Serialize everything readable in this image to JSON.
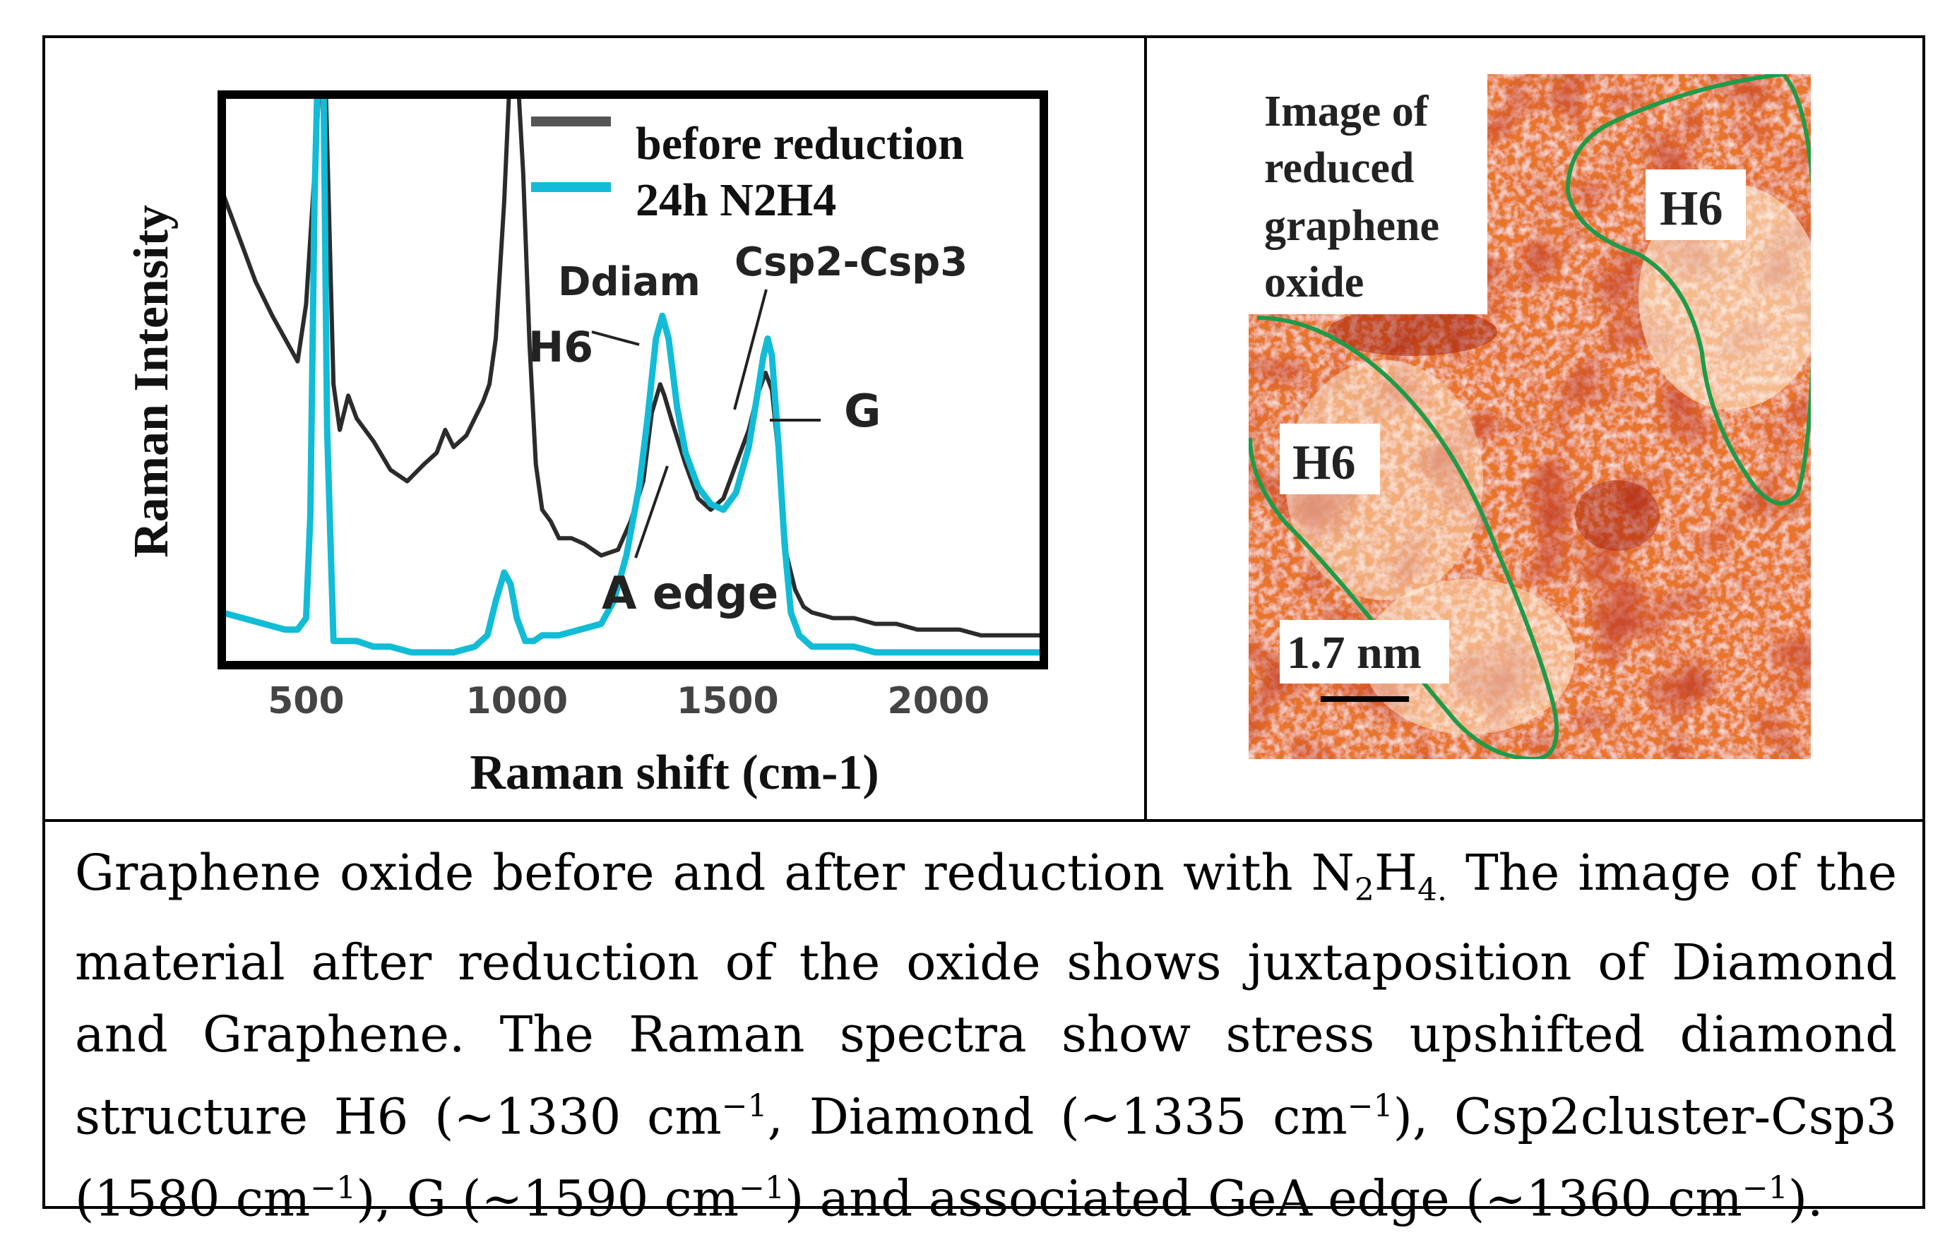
{
  "chart_data": {
    "type": "line",
    "xlabel": "Raman shift (cm-1)",
    "ylabel": "Raman Intensity",
    "xlim": [
      300,
      2250
    ],
    "x_ticks": [
      "500",
      "1000",
      "1500",
      "2000"
    ],
    "x_tick_values": [
      500,
      1000,
      1500,
      2000
    ],
    "ylim": [
      0,
      100
    ],
    "legend": {
      "position": "top-right"
    },
    "series": [
      {
        "name": "before reduction",
        "color": "#2b2b2b",
        "x": [
          300,
          340,
          380,
          420,
          450,
          480,
          500,
          520,
          535,
          545,
          565,
          580,
          600,
          620,
          660,
          700,
          740,
          780,
          810,
          830,
          850,
          880,
          900,
          920,
          935,
          950,
          970,
          985,
          1000,
          1015,
          1030,
          1045,
          1060,
          1080,
          1100,
          1130,
          1160,
          1200,
          1240,
          1270,
          1300,
          1320,
          1340,
          1350,
          1370,
          1400,
          1430,
          1460,
          1490,
          1520,
          1550,
          1570,
          1590,
          1605,
          1620,
          1640,
          1660,
          1680,
          1700,
          1750,
          1800,
          1850,
          1900,
          1950,
          2000,
          2050,
          2100,
          2150,
          2200,
          2250
        ],
        "y": [
          82,
          74,
          66,
          60,
          56,
          52,
          62,
          85,
          105,
          105,
          48,
          40,
          46,
          42,
          38,
          33,
          31,
          34,
          36,
          40,
          37,
          39,
          42,
          45,
          48,
          56,
          80,
          105,
          105,
          85,
          55,
          34,
          26,
          24,
          21,
          21,
          20,
          18,
          19,
          24,
          31,
          43,
          48,
          46,
          41,
          34,
          28,
          26,
          28,
          34,
          40,
          46,
          50,
          47,
          36,
          18,
          12,
          9,
          8,
          7,
          7,
          6,
          6,
          5,
          5,
          5,
          4,
          4,
          4,
          4
        ]
      },
      {
        "name": "24h N2H4",
        "color": "#12bcd6",
        "x": [
          300,
          350,
          400,
          450,
          480,
          500,
          510,
          520,
          530,
          540,
          550,
          565,
          580,
          620,
          660,
          700,
          750,
          800,
          850,
          900,
          930,
          950,
          970,
          985,
          1000,
          1020,
          1040,
          1060,
          1100,
          1150,
          1200,
          1230,
          1260,
          1290,
          1310,
          1330,
          1345,
          1360,
          1380,
          1400,
          1430,
          1460,
          1490,
          1520,
          1550,
          1570,
          1585,
          1595,
          1605,
          1620,
          1635,
          1650,
          1670,
          1700,
          1750,
          1800,
          1850,
          1900,
          1950,
          2000,
          2050,
          2100,
          2150,
          2200,
          2250
        ],
        "y": [
          8,
          7,
          6,
          5,
          5,
          7,
          25,
          80,
          110,
          110,
          40,
          3,
          3,
          3,
          2,
          2,
          1,
          1,
          1,
          2,
          4,
          10,
          15,
          13,
          7,
          3,
          3,
          4,
          4,
          5,
          6,
          10,
          18,
          30,
          42,
          56,
          60,
          56,
          44,
          36,
          30,
          27,
          26,
          29,
          37,
          46,
          53,
          56,
          53,
          38,
          20,
          8,
          4,
          2,
          2,
          2,
          1,
          1,
          1,
          1,
          1,
          1,
          1,
          1,
          1
        ]
      }
    ],
    "annotations": [
      "Ddiam",
      "Csp2-Csp3",
      "H6",
      "G",
      "A edge"
    ]
  },
  "afm_image": {
    "label": "Image of reduced graphene oxide",
    "label_lines": [
      "Image of",
      "reduced",
      "graphene",
      "oxide"
    ],
    "region_labels": [
      "H6",
      "H6"
    ],
    "scale_bar_label": "1.7 nm",
    "outline_color": "#1f9a4a",
    "base_color": "#e8752a"
  },
  "caption": {
    "part1": "Graphene oxide before and after reduction with N",
    "sub1": "2",
    "mid1": "H",
    "sub2": "4.",
    "part2": " The image of the material after reduction of the oxide shows juxtaposition of Diamond and Graphene. The Raman spectra show stress upshifted diamond structure H6 (~1330 cm",
    "sup1": "−1",
    "part3": ", Diamond (~1335 cm",
    "sup2": "−1",
    "part4": "), Csp2cluster-Csp3 (1580 cm",
    "sup3": "−1",
    "part5": "), G (~1590 cm",
    "sup4": "−1",
    "part6": ") and associated GeA edge (~1360 cm",
    "sup5": "−1",
    "part7": ")."
  }
}
